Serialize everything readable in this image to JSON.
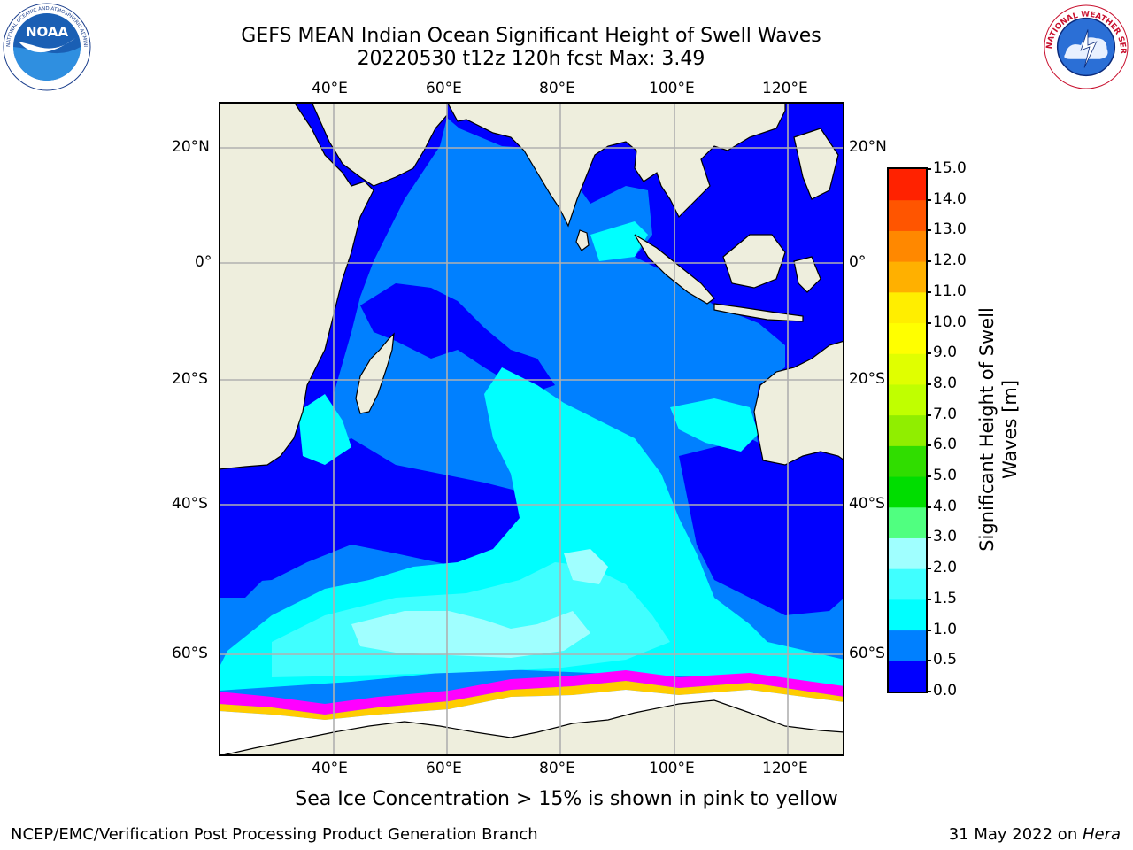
{
  "header": {
    "title_line1": "GEFS MEAN Indian Ocean Significant Height of Swell Waves",
    "title_line2": "20220530 t12z 120h fcst   Max: 3.49"
  },
  "logos": {
    "noaa": {
      "text": "NOAA",
      "ring_text": "NATIONAL OCEANIC AND ATMOSPHERIC ADMINISTRATION · U.S. DEPARTMENT OF COMMERCE"
    },
    "nws": {
      "ring_text": "NATIONAL WEATHER SERVICE"
    }
  },
  "map": {
    "lon_ticks": [
      "40°E",
      "60°E",
      "80°E",
      "100°E",
      "120°E"
    ],
    "lat_ticks": [
      "20°N",
      "0°",
      "20°S",
      "40°S",
      "60°S"
    ],
    "colors": {
      "land": "#eeeedd",
      "ice": "#ffffff",
      "coast": "#000000",
      "grid": "#b0b0b0"
    }
  },
  "colorbar": {
    "label_line1": "Significant Height of Swell",
    "label_line2": "Waves [m]",
    "ticks": [
      "0.0",
      "0.5",
      "1.0",
      "1.5",
      "2.0",
      "3.0",
      "4.0",
      "5.0",
      "6.0",
      "7.0",
      "8.0",
      "9.0",
      "10.0",
      "11.0",
      "12.0",
      "13.0",
      "14.0",
      "15.0"
    ],
    "colors": [
      "#0000ff",
      "#0080ff",
      "#00ffff",
      "#40ffff",
      "#a0ffff",
      "#50ff80",
      "#00dd00",
      "#30dd00",
      "#90ee00",
      "#c0ff00",
      "#e0ff00",
      "#ffff00",
      "#ffee00",
      "#ffb000",
      "#ff8800",
      "#ff5500",
      "#ff2200",
      "#ff0000"
    ]
  },
  "footer": {
    "caption": "Sea Ice Concentration > 15% is shown in pink to yellow",
    "left": "NCEP/EMC/Verification Post Processing Product Generation Branch",
    "right_date": "31 May 2022 on ",
    "right_machine": "Hera"
  }
}
